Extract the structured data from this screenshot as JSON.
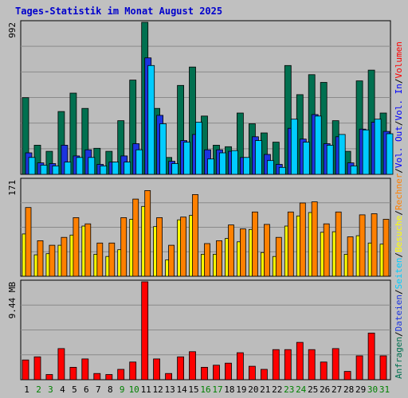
{
  "title": "Tages-Statistik im Monat August 2025",
  "colors": {
    "background": "#c0c0c0",
    "panel": "#bcbcbc",
    "frame": "#000000",
    "grid": "#8a8a8a",
    "title": "#0000cc",
    "anfragen": "#007050",
    "dateien": "#1c34e0",
    "seiten": "#00ccff",
    "besuche": "#ffff00",
    "rechner": "#ff8000",
    "vol_in": "#ff0000",
    "vol_out": "#0000ff",
    "weekday_label": "#000000",
    "weekend_label": "#008000",
    "separator": "#000000",
    "outline": "#000000"
  },
  "chart_data": [
    {
      "type": "bar",
      "panel": "top",
      "ylabel_max": "992",
      "ymax": 992,
      "x": [
        1,
        2,
        3,
        4,
        5,
        6,
        7,
        8,
        9,
        10,
        11,
        12,
        13,
        14,
        15,
        16,
        17,
        18,
        19,
        20,
        21,
        22,
        23,
        24,
        25,
        26,
        27,
        28,
        29,
        30,
        31
      ],
      "series": [
        {
          "name": "Anfragen",
          "color_key": "anfragen",
          "values": [
            500,
            190,
            150,
            410,
            530,
            430,
            170,
            150,
            350,
            615,
            992,
            430,
            110,
            580,
            700,
            380,
            190,
            180,
            400,
            330,
            270,
            210,
            710,
            520,
            650,
            600,
            350,
            150,
            610,
            680,
            400
          ]
        },
        {
          "name": "Dateien",
          "color_key": "dateien",
          "values": [
            140,
            75,
            70,
            190,
            120,
            160,
            65,
            80,
            120,
            200,
            760,
            385,
            85,
            220,
            260,
            160,
            160,
            150,
            110,
            245,
            130,
            65,
            300,
            230,
            390,
            200,
            245,
            75,
            295,
            340,
            280
          ]
        },
        {
          "name": "Seiten",
          "color_key": "seiten",
          "values": [
            110,
            60,
            55,
            80,
            110,
            110,
            55,
            80,
            80,
            160,
            710,
            330,
            70,
            210,
            340,
            100,
            140,
            155,
            110,
            220,
            90,
            45,
            360,
            210,
            380,
            190,
            260,
            55,
            290,
            360,
            265
          ]
        }
      ]
    },
    {
      "type": "bar",
      "panel": "middle",
      "ylabel_max": "171",
      "ymax": 171,
      "x": [
        1,
        2,
        3,
        4,
        5,
        6,
        7,
        8,
        9,
        10,
        11,
        12,
        13,
        14,
        15,
        16,
        17,
        18,
        19,
        20,
        21,
        22,
        23,
        24,
        25,
        26,
        27,
        28,
        29,
        30,
        31
      ],
      "series": [
        {
          "name": "Besuche",
          "color_key": "besuche",
          "values": [
            75,
            38,
            40,
            55,
            73,
            89,
            39,
            35,
            47,
            101,
            124,
            88,
            29,
            100,
            108,
            39,
            39,
            67,
            61,
            83,
            42,
            35,
            89,
            107,
            113,
            78,
            79,
            39,
            72,
            59,
            57
          ]
        },
        {
          "name": "Rechner",
          "color_key": "rechner",
          "values": [
            122,
            63,
            55,
            69,
            104,
            93,
            59,
            59,
            104,
            137,
            152,
            104,
            55,
            105,
            145,
            58,
            63,
            91,
            84,
            114,
            92,
            69,
            114,
            130,
            132,
            93,
            114,
            70,
            109,
            111,
            101
          ]
        }
      ]
    },
    {
      "type": "bar",
      "panel": "bottom",
      "ylabel_max": "9.44 MB",
      "ymax": 9.44,
      "x": [
        1,
        2,
        3,
        4,
        5,
        6,
        7,
        8,
        9,
        10,
        11,
        12,
        13,
        14,
        15,
        16,
        17,
        18,
        19,
        20,
        21,
        22,
        23,
        24,
        25,
        26,
        27,
        28,
        29,
        30,
        31
      ],
      "series": [
        {
          "name": "Volumen",
          "color_key": "vol_in",
          "values": [
            1.9,
            2.2,
            0.5,
            3.0,
            1.2,
            2.0,
            0.6,
            0.5,
            1.0,
            1.7,
            9.44,
            2.0,
            0.6,
            2.2,
            2.7,
            1.2,
            1.4,
            1.6,
            2.6,
            1.3,
            1.0,
            2.9,
            2.9,
            3.6,
            2.9,
            1.7,
            3.0,
            0.8,
            2.3,
            4.5,
            2.3
          ]
        }
      ]
    }
  ],
  "x_labels": [
    {
      "text": "1",
      "weekend": false
    },
    {
      "text": "2",
      "weekend": true
    },
    {
      "text": "3",
      "weekend": true
    },
    {
      "text": "4",
      "weekend": false
    },
    {
      "text": "5",
      "weekend": false
    },
    {
      "text": "6",
      "weekend": false
    },
    {
      "text": "7",
      "weekend": false
    },
    {
      "text": "8",
      "weekend": false
    },
    {
      "text": "9",
      "weekend": true
    },
    {
      "text": "10",
      "weekend": true
    },
    {
      "text": "11",
      "weekend": false
    },
    {
      "text": "12",
      "weekend": false
    },
    {
      "text": "13",
      "weekend": false
    },
    {
      "text": "14",
      "weekend": false
    },
    {
      "text": "15",
      "weekend": false
    },
    {
      "text": "16",
      "weekend": true
    },
    {
      "text": "17",
      "weekend": true
    },
    {
      "text": "18",
      "weekend": false
    },
    {
      "text": "19",
      "weekend": false
    },
    {
      "text": "20",
      "weekend": false
    },
    {
      "text": "21",
      "weekend": false
    },
    {
      "text": "22",
      "weekend": false
    },
    {
      "text": "23",
      "weekend": true
    },
    {
      "text": "24",
      "weekend": true
    },
    {
      "text": "25",
      "weekend": false
    },
    {
      "text": "26",
      "weekend": false
    },
    {
      "text": "27",
      "weekend": false
    },
    {
      "text": "28",
      "weekend": false
    },
    {
      "text": "29",
      "weekend": false
    },
    {
      "text": "30",
      "weekend": true
    },
    {
      "text": "31",
      "weekend": true
    }
  ],
  "right_labels": {
    "top": [
      {
        "text": "Anfragen",
        "color_key": "anfragen"
      },
      {
        "text": "/",
        "color_key": "separator"
      },
      {
        "text": "Dateien",
        "color_key": "dateien"
      },
      {
        "text": "/",
        "color_key": "separator"
      },
      {
        "text": "Seiten",
        "color_key": "seiten"
      },
      {
        "text": "/",
        "color_key": "separator"
      },
      {
        "text": "Besuche",
        "color_key": "besuche"
      },
      {
        "text": "/",
        "color_key": "separator"
      },
      {
        "text": "Rechner",
        "color_key": "rechner"
      },
      {
        "text": "/",
        "color_key": "separator"
      },
      {
        "text": "Vol. Out",
        "color_key": "vol_out"
      },
      {
        "text": "/",
        "color_key": "separator"
      },
      {
        "text": "Vol. In",
        "color_key": "vol_out"
      },
      {
        "text": "/",
        "color_key": "separator"
      },
      {
        "text": "Volumen",
        "color_key": "vol_in"
      }
    ]
  }
}
